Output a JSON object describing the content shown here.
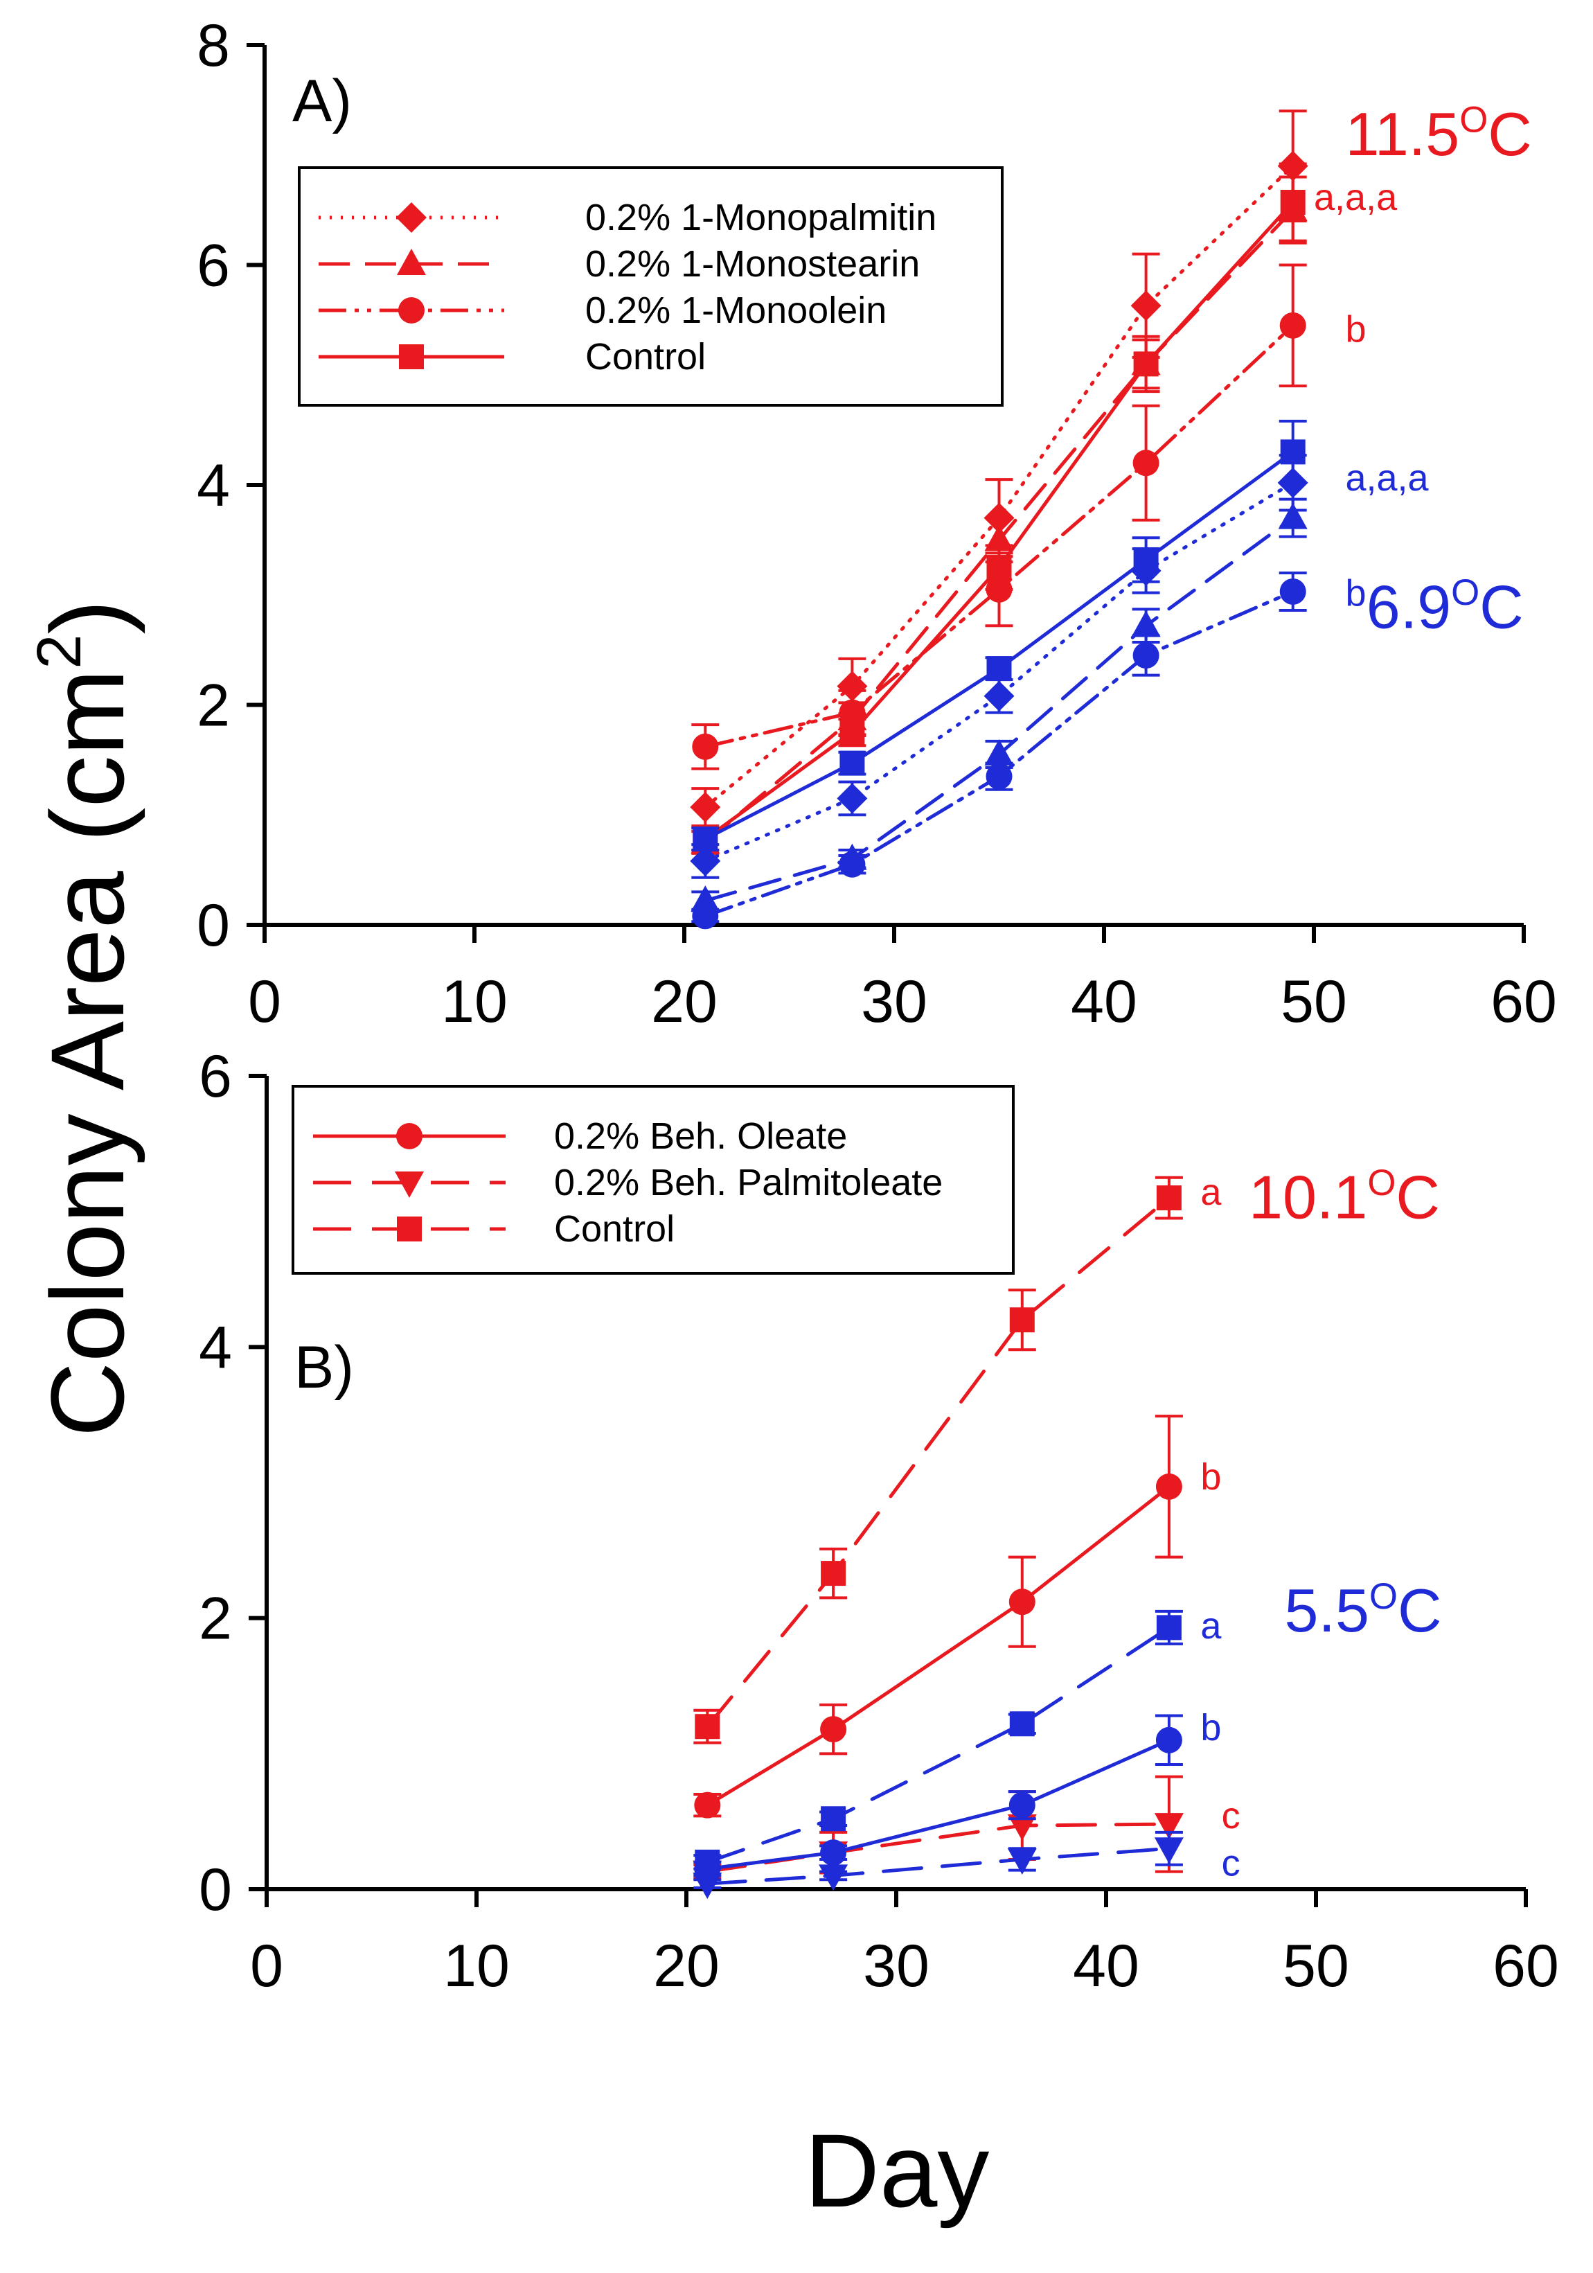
{
  "colors": {
    "red": "#e8191f",
    "blue": "#1f2bd6",
    "black": "#000000"
  },
  "shared": {
    "ylabel": "Colony Area (cm",
    "ylabel_sup": "2",
    "ylabel_close": ")",
    "xlabel": "Day"
  },
  "chart_data": [
    {
      "type": "line",
      "panel_label": "A)",
      "xlim": [
        0,
        60
      ],
      "ylim": [
        0,
        8
      ],
      "xticks": [
        0,
        10,
        20,
        30,
        40,
        50,
        60
      ],
      "yticks": [
        0,
        2,
        4,
        6,
        8
      ],
      "grid": false,
      "legend_position": "top-left",
      "annotations": [
        {
          "text": "11.5",
          "sup": "O",
          "after": "C",
          "color": "red",
          "x": 51.5,
          "y": 7.0,
          "size": 88
        },
        {
          "text": "6.9",
          "sup": "O",
          "after": "C",
          "color": "blue",
          "x": 52.5,
          "y": 2.7,
          "size": 88
        },
        {
          "text": "a,a,a",
          "color": "red",
          "x": 50.0,
          "y": 6.5,
          "size": 54
        },
        {
          "text": "b",
          "color": "red",
          "x": 51.5,
          "y": 5.3,
          "size": 54
        },
        {
          "text": "a,a,a",
          "color": "blue",
          "x": 51.5,
          "y": 3.95,
          "size": 54
        },
        {
          "text": "b",
          "color": "blue",
          "x": 51.5,
          "y": 2.9,
          "size": 54
        }
      ],
      "series": [
        {
          "name": "0.2% 1-Monopalmitin",
          "color": "red",
          "dash": "dotted",
          "marker": "diamond",
          "x": [
            21,
            28,
            35,
            42,
            49
          ],
          "y": [
            1.07,
            2.17,
            3.7,
            5.63,
            6.9
          ],
          "err": [
            0.17,
            0.25,
            0.35,
            0.47,
            0.5
          ]
        },
        {
          "name": "0.2% 1-Monostearin",
          "color": "red",
          "dash": "dashed",
          "marker": "triangle",
          "x": [
            21,
            28,
            35,
            42,
            49
          ],
          "y": [
            0.75,
            1.87,
            3.5,
            5.1,
            6.5
          ],
          "err": [
            0.1,
            0.15,
            0.2,
            0.25,
            0.3
          ]
        },
        {
          "name": "0.2% 1-Monoolein",
          "color": "red",
          "dash": "dashdotdot",
          "marker": "circle",
          "x": [
            21,
            28,
            35,
            42,
            49
          ],
          "y": [
            1.62,
            1.93,
            3.05,
            4.2,
            5.45
          ],
          "err": [
            0.2,
            0.2,
            0.33,
            0.52,
            0.55
          ]
        },
        {
          "name": "Control",
          "color": "red",
          "dash": "solid",
          "marker": "square",
          "x": [
            21,
            28,
            35,
            42,
            49
          ],
          "y": [
            0.78,
            1.75,
            3.25,
            5.1,
            6.57
          ],
          "err": [
            0.1,
            0.12,
            0.2,
            0.22,
            0.35
          ]
        },
        {
          "name": "",
          "color": "blue",
          "dash": "dotted",
          "marker": "diamond",
          "x": [
            21,
            28,
            35,
            42,
            49
          ],
          "y": [
            0.58,
            1.15,
            2.08,
            3.22,
            4.02
          ],
          "err": [
            0.15,
            0.15,
            0.15,
            0.2,
            0.25
          ]
        },
        {
          "name": "",
          "color": "blue",
          "dash": "dashed",
          "marker": "triangle",
          "x": [
            21,
            28,
            35,
            42,
            49
          ],
          "y": [
            0.22,
            0.6,
            1.55,
            2.72,
            3.7
          ],
          "err": [
            0.08,
            0.08,
            0.12,
            0.15,
            0.17
          ]
        },
        {
          "name": "",
          "color": "blue",
          "dash": "dashdotdot",
          "marker": "circle",
          "x": [
            21,
            28,
            35,
            42,
            49
          ],
          "y": [
            0.08,
            0.55,
            1.35,
            2.45,
            3.03
          ],
          "err": [
            0.05,
            0.08,
            0.12,
            0.18,
            0.17
          ]
        },
        {
          "name": "",
          "color": "blue",
          "dash": "solid",
          "marker": "square",
          "x": [
            21,
            28,
            35,
            42,
            49
          ],
          "y": [
            0.78,
            1.47,
            2.33,
            3.32,
            4.3
          ],
          "err": [
            0.1,
            0.1,
            0.1,
            0.2,
            0.28
          ]
        }
      ]
    },
    {
      "type": "line",
      "panel_label": "B)",
      "xlim": [
        0,
        60
      ],
      "ylim": [
        0,
        6
      ],
      "xticks": [
        0,
        10,
        20,
        30,
        40,
        50,
        60
      ],
      "yticks": [
        0,
        2,
        4,
        6
      ],
      "grid": false,
      "legend_position": "top-left",
      "annotations": [
        {
          "text": "10.1",
          "sup": "O",
          "after": "C",
          "color": "red",
          "x": 46.8,
          "y": 4.95,
          "size": 88
        },
        {
          "text": "5.5",
          "sup": "O",
          "after": "C",
          "color": "blue",
          "x": 48.5,
          "y": 1.9,
          "size": 88
        },
        {
          "text": "a",
          "color": "red",
          "x": 44.5,
          "y": 5.05,
          "size": 54
        },
        {
          "text": "b",
          "color": "red",
          "x": 44.5,
          "y": 2.95,
          "size": 54
        },
        {
          "text": "a",
          "color": "blue",
          "x": 44.5,
          "y": 1.85,
          "size": 54
        },
        {
          "text": "b",
          "color": "blue",
          "x": 44.5,
          "y": 1.1,
          "size": 54
        },
        {
          "text": "c",
          "color": "red",
          "x": 45.5,
          "y": 0.45,
          "size": 54
        },
        {
          "text": "c",
          "color": "blue",
          "x": 45.5,
          "y": 0.1,
          "size": 54
        }
      ],
      "series": [
        {
          "name": "0.2% Beh. Oleate",
          "color": "red",
          "dash": "solid",
          "marker": "circle",
          "x": [
            21,
            27,
            36,
            43
          ],
          "y": [
            0.62,
            1.18,
            2.12,
            2.97
          ],
          "err": [
            0.08,
            0.18,
            0.33,
            0.52
          ]
        },
        {
          "name": "0.2% Beh. Palmitoleate",
          "color": "red",
          "dash": "longdash",
          "marker": "invtriangle",
          "x": [
            21,
            27,
            36,
            43
          ],
          "y": [
            0.13,
            0.27,
            0.47,
            0.48
          ],
          "err": [
            0.05,
            0.15,
            0.25,
            0.35
          ]
        },
        {
          "name": "Control",
          "color": "red",
          "dash": "longdash",
          "marker": "square",
          "x": [
            21,
            27,
            36,
            43
          ],
          "y": [
            1.2,
            2.33,
            4.2,
            5.1
          ],
          "err": [
            0.12,
            0.18,
            0.22,
            0.15
          ]
        },
        {
          "name": "",
          "color": "blue",
          "dash": "solid",
          "marker": "circle",
          "x": [
            21,
            27,
            36,
            43
          ],
          "y": [
            0.15,
            0.27,
            0.62,
            1.1
          ],
          "err": [
            0.05,
            0.05,
            0.1,
            0.18
          ]
        },
        {
          "name": "",
          "color": "blue",
          "dash": "longdash",
          "marker": "invtriangle",
          "x": [
            21,
            27,
            36,
            43
          ],
          "y": [
            0.04,
            0.1,
            0.22,
            0.3
          ],
          "err": [
            0.03,
            0.03,
            0.08,
            0.12
          ]
        },
        {
          "name": "",
          "color": "blue",
          "dash": "longdash",
          "marker": "square",
          "x": [
            21,
            27,
            36,
            43
          ],
          "y": [
            0.2,
            0.52,
            1.22,
            1.93
          ],
          "err": [
            0.05,
            0.05,
            0.07,
            0.12
          ]
        }
      ]
    }
  ]
}
